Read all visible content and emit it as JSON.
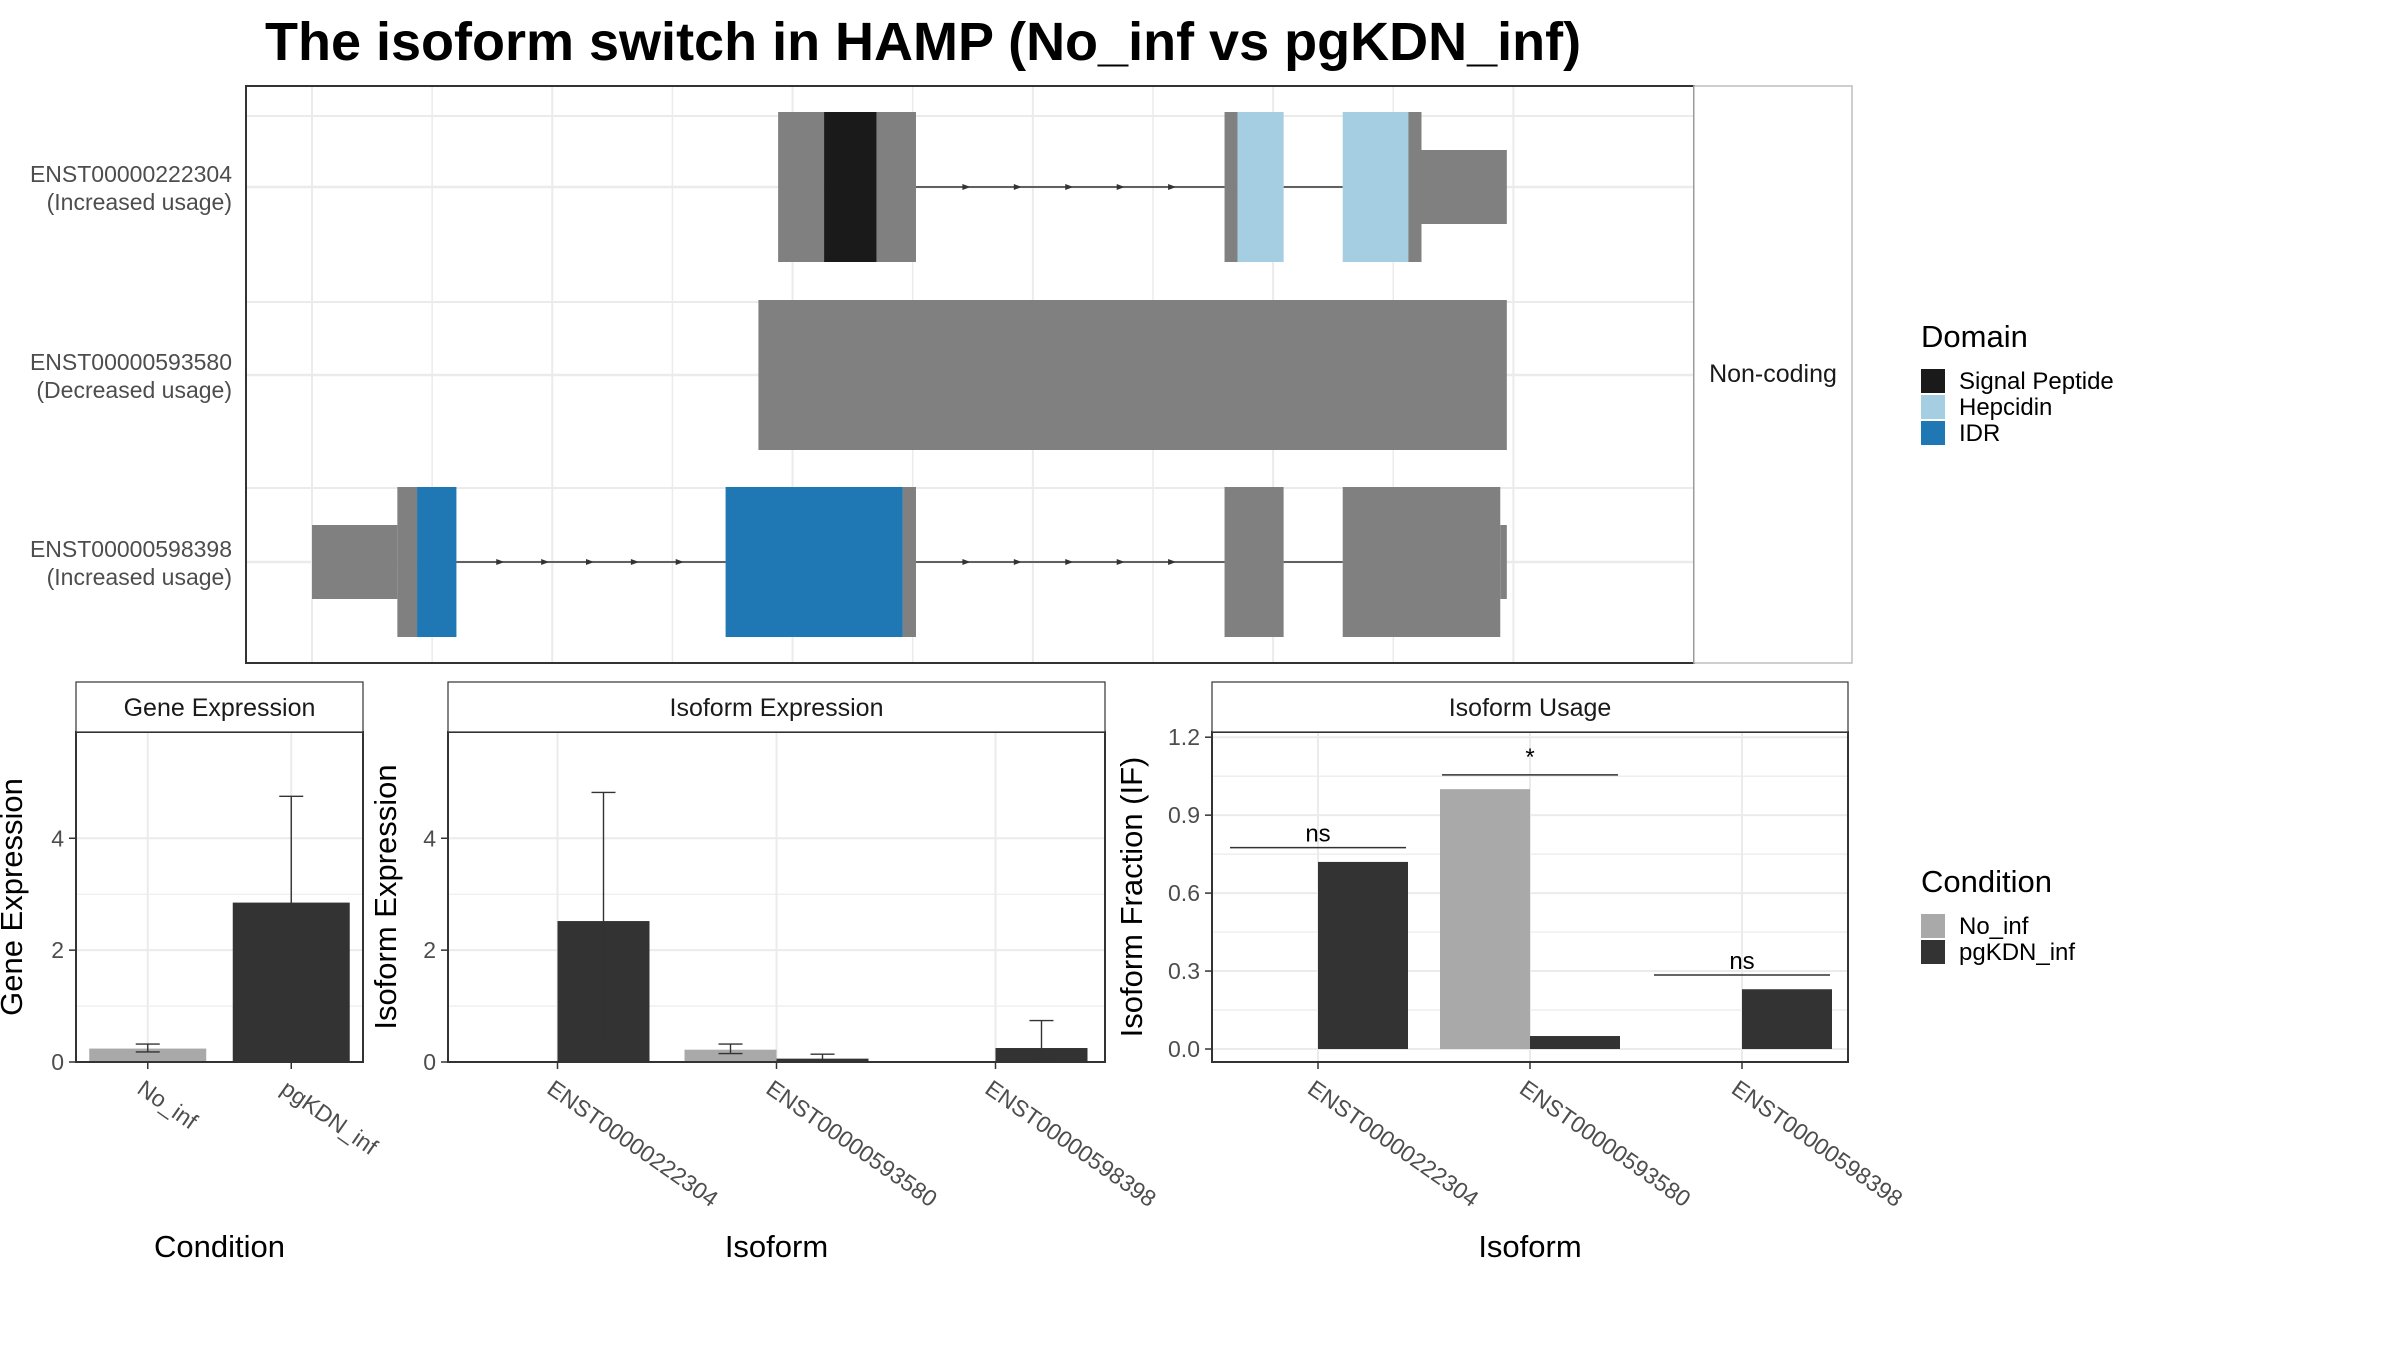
{
  "title": "The isoform switch in HAMP (No_inf vs pgKDN_inf)",
  "colors": {
    "utr": "#808080",
    "signal_peptide": "#1a1a1a",
    "hepcidin": "#a6cee3",
    "idr": "#1f78b4",
    "no_inf": "#a9a9a9",
    "pgkdn_inf": "#333333",
    "grid": "#ebebeb",
    "panel_border": "#333333",
    "strip_fill": "#ffffff"
  },
  "chart_data": [
    {
      "type": "isoform_structure",
      "xlim": [
        0,
        100
      ],
      "strip_label": "Non-coding",
      "transcripts": [
        {
          "id": "ENST00000222304",
          "usage": "(Increased usage)",
          "blocks": [
            {
              "start": 35.5,
              "end": 39.0,
              "kind": "utr"
            },
            {
              "start": 39.0,
              "end": 43.0,
              "kind": "signal_peptide"
            },
            {
              "start": 43.0,
              "end": 46.0,
              "kind": "utr"
            },
            {
              "start": 69.5,
              "end": 70.5,
              "kind": "utr"
            },
            {
              "start": 70.5,
              "end": 74.0,
              "kind": "hepcidin"
            },
            {
              "start": 78.5,
              "end": 83.5,
              "kind": "hepcidin"
            },
            {
              "start": 83.5,
              "end": 84.5,
              "kind": "utr"
            },
            {
              "start": 84.5,
              "end": 91.0,
              "kind": "utr_thin"
            }
          ],
          "introns": [
            [
              46.0,
              69.5
            ],
            [
              74.0,
              78.5
            ]
          ]
        },
        {
          "id": "ENST00000593580",
          "usage": "(Decreased usage)",
          "blocks": [
            {
              "start": 34.0,
              "end": 91.0,
              "kind": "noncoding"
            }
          ],
          "introns": []
        },
        {
          "id": "ENST00000598398",
          "usage": "(Increased usage)",
          "blocks": [
            {
              "start": 0.0,
              "end": 6.5,
              "kind": "utr_thin"
            },
            {
              "start": 6.5,
              "end": 8.0,
              "kind": "utr"
            },
            {
              "start": 8.0,
              "end": 11.0,
              "kind": "idr"
            },
            {
              "start": 31.5,
              "end": 45.0,
              "kind": "idr"
            },
            {
              "start": 45.0,
              "end": 46.0,
              "kind": "utr"
            },
            {
              "start": 69.5,
              "end": 74.0,
              "kind": "utr"
            },
            {
              "start": 78.5,
              "end": 90.5,
              "kind": "utr"
            },
            {
              "start": 90.5,
              "end": 91.0,
              "kind": "utr_thin"
            }
          ],
          "introns": [
            [
              11.0,
              31.5
            ],
            [
              46.0,
              69.5
            ],
            [
              74.0,
              78.5
            ]
          ]
        }
      ],
      "legend": {
        "title": "Domain",
        "entries": [
          {
            "label": "Signal Peptide",
            "color": "#1a1a1a"
          },
          {
            "label": "Hepcidin",
            "color": "#a6cee3"
          },
          {
            "label": "IDR",
            "color": "#1f78b4"
          }
        ]
      }
    },
    {
      "type": "bar",
      "strip_label": "Gene Expression",
      "ylabel": "Gene Expression",
      "xlabel": "Condition",
      "ylim": [
        0,
        5.9
      ],
      "yticks": [
        0,
        2,
        4
      ],
      "categories": [
        "No_inf",
        "pgKDN_inf"
      ],
      "values": [
        0.24,
        2.85
      ],
      "errors": [
        [
          0.18,
          0.32
        ],
        [
          0.98,
          4.75
        ]
      ],
      "colors": [
        "#a9a9a9",
        "#333333"
      ]
    },
    {
      "type": "bar",
      "strip_label": "Isoform Expression",
      "ylabel": "Isoform Expression",
      "xlabel": "Isoform",
      "ylim": [
        0,
        5.9
      ],
      "yticks": [
        0,
        2,
        4
      ],
      "categories": [
        "ENST00000222304",
        "ENST00000593580",
        "ENST00000598398"
      ],
      "series": [
        {
          "name": "No_inf",
          "values": [
            0.0,
            0.22,
            0.0
          ],
          "errors": [
            [
              0.0,
              0.0
            ],
            [
              0.15,
              0.32
            ],
            [
              0.0,
              0.0
            ]
          ]
        },
        {
          "name": "pgKDN_inf",
          "values": [
            2.52,
            0.06,
            0.25
          ],
          "errors": [
            [
              0.28,
              4.82
            ],
            [
              0.02,
              0.14
            ],
            [
              0.04,
              0.74
            ]
          ]
        }
      ]
    },
    {
      "type": "bar",
      "strip_label": "Isoform Usage",
      "ylabel": "Isoform Fraction (IF)",
      "xlabel": "Isoform",
      "ylim": [
        -0.05,
        1.22
      ],
      "yticks": [
        0.0,
        0.3,
        0.6,
        0.9,
        1.2
      ],
      "ytick_labels": [
        "0.0",
        "0.3",
        "0.6",
        "0.9",
        "1.2"
      ],
      "categories": [
        "ENST00000222304",
        "ENST00000593580",
        "ENST00000598398"
      ],
      "series": [
        {
          "name": "No_inf",
          "values": [
            0.0,
            1.0,
            0.0
          ]
        },
        {
          "name": "pgKDN_inf",
          "values": [
            0.72,
            0.05,
            0.23
          ]
        }
      ],
      "significance": [
        {
          "category": "ENST00000222304",
          "label": "ns",
          "y": 0.775
        },
        {
          "category": "ENST00000593580",
          "label": "*",
          "y": 1.055
        },
        {
          "category": "ENST00000598398",
          "label": "ns",
          "y": 0.285
        }
      ],
      "legend": {
        "title": "Condition",
        "entries": [
          {
            "label": "No_inf",
            "color": "#a9a9a9"
          },
          {
            "label": "pgKDN_inf",
            "color": "#333333"
          }
        ]
      }
    }
  ]
}
